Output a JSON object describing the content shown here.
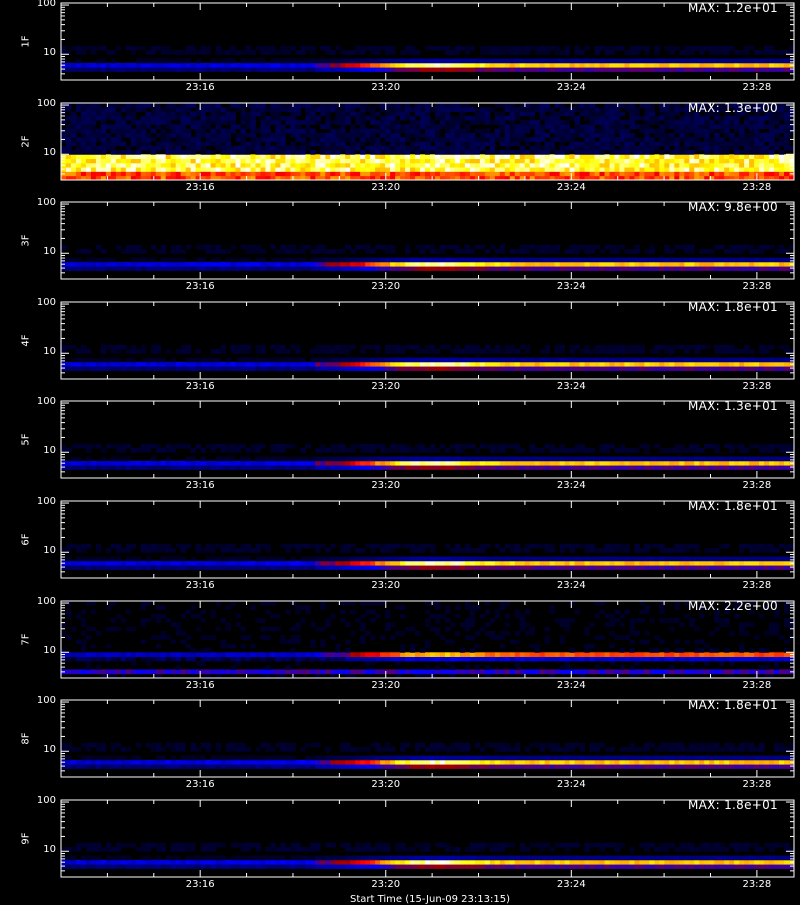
{
  "chart_data": {
    "type": "heatmap",
    "x_axis": {
      "tick_labels": [
        "23:16",
        "23:20",
        "23:24",
        "23:28"
      ],
      "tick_minutes": [
        16,
        20,
        24,
        28
      ],
      "range_minutes": [
        13.0,
        28.8
      ]
    },
    "y_axis": {
      "scale": "log",
      "range": [
        3,
        110
      ],
      "tick_labels": [
        "10",
        "100"
      ],
      "tick_values": [
        10,
        100
      ]
    },
    "colormap": [
      "#000000",
      "#0000a0",
      "#0000ff",
      "#a00000",
      "#ff0000",
      "#ff8000",
      "#ffff00",
      "#ffffff"
    ],
    "panels": [
      {
        "label": "1F",
        "max_text": "MAX: 1.2e+01",
        "max": 12.0,
        "band": "normal",
        "peak_minute": 21.0
      },
      {
        "label": "2F",
        "max_text": "MAX: 1.3e+00",
        "max": 1.3,
        "band": "saturated",
        "peak_minute": 21.0
      },
      {
        "label": "3F",
        "max_text": "MAX: 9.8e+00",
        "max": 9.8,
        "band": "normal",
        "peak_minute": 21.0
      },
      {
        "label": "4F",
        "max_text": "MAX: 1.8e+01",
        "max": 18.0,
        "band": "normal",
        "peak_minute": 21.0
      },
      {
        "label": "5F",
        "max_text": "MAX: 1.3e+01",
        "max": 13.0,
        "band": "normal",
        "peak_minute": 20.8
      },
      {
        "label": "6F",
        "max_text": "MAX: 1.8e+01",
        "max": 18.0,
        "band": "normal",
        "peak_minute": 21.0
      },
      {
        "label": "7F",
        "max_text": "MAX: 2.2e+00",
        "max": 2.2,
        "band": "double",
        "peak_minute": 21.0
      },
      {
        "label": "8F",
        "max_text": "MAX: 1.8e+01",
        "max": 18.0,
        "band": "normal",
        "peak_minute": 21.0
      },
      {
        "label": "9F",
        "max_text": "MAX: 1.8e+01",
        "max": 18.0,
        "band": "normal",
        "peak_minute": 21.0
      }
    ],
    "x_title": "Start Time (15-Jun-09 23:13:15)"
  }
}
